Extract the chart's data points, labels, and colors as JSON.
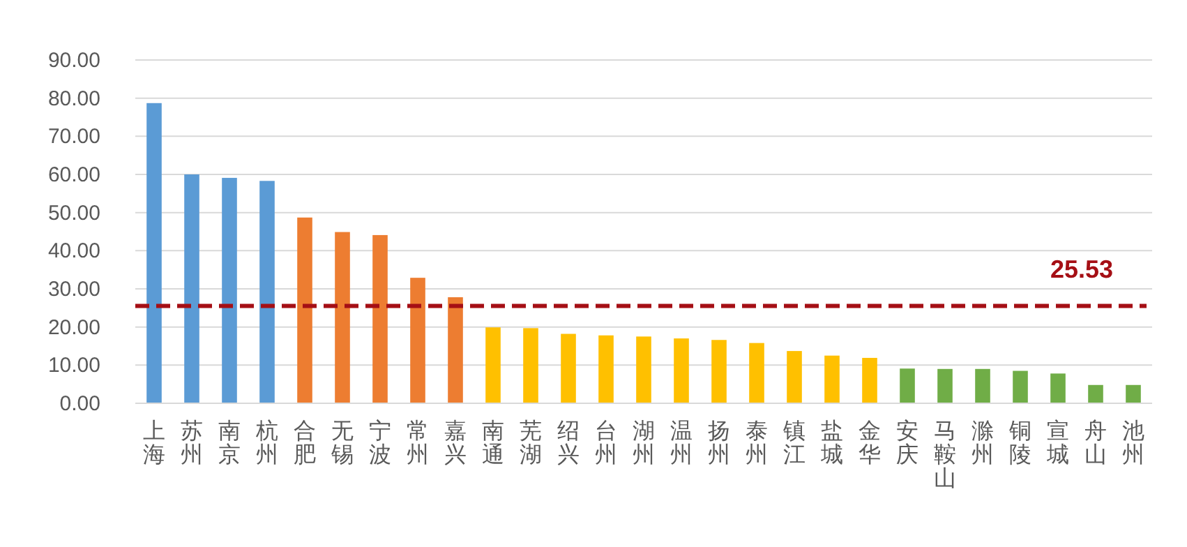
{
  "chart_data": {
    "type": "bar",
    "categories": [
      "上海",
      "苏州",
      "南京",
      "杭州",
      "合肥",
      "无锡",
      "宁波",
      "常州",
      "嘉兴",
      "南通",
      "芜湖",
      "绍兴",
      "台州",
      "湖州",
      "温州",
      "扬州",
      "泰州",
      "镇江",
      "盐城",
      "金华",
      "安庆",
      "马鞍山",
      "滁州",
      "铜陵",
      "宣城",
      "舟山",
      "池州"
    ],
    "values": [
      78.7,
      60.0,
      59.1,
      58.3,
      48.7,
      44.9,
      44.1,
      32.9,
      27.8,
      19.9,
      19.7,
      18.2,
      17.8,
      17.5,
      17.0,
      16.6,
      15.8,
      13.7,
      12.5,
      11.9,
      9.1,
      9.0,
      9.0,
      8.5,
      7.8,
      4.8,
      4.8
    ],
    "colors": [
      "#5b9bd5",
      "#5b9bd5",
      "#5b9bd5",
      "#5b9bd5",
      "#ed7d31",
      "#ed7d31",
      "#ed7d31",
      "#ed7d31",
      "#ed7d31",
      "#ffc000",
      "#ffc000",
      "#ffc000",
      "#ffc000",
      "#ffc000",
      "#ffc000",
      "#ffc000",
      "#ffc000",
      "#ffc000",
      "#ffc000",
      "#ffc000",
      "#70ad47",
      "#70ad47",
      "#70ad47",
      "#70ad47",
      "#70ad47",
      "#70ad47",
      "#70ad47"
    ],
    "ylim": [
      0,
      90
    ],
    "yticks": [
      {
        "value": 0,
        "label": "0.00"
      },
      {
        "value": 10,
        "label": "10.00"
      },
      {
        "value": 20,
        "label": "20.00"
      },
      {
        "value": 30,
        "label": "30.00"
      },
      {
        "value": 40,
        "label": "40.00"
      },
      {
        "value": 50,
        "label": "50.00"
      },
      {
        "value": 60,
        "label": "60.00"
      },
      {
        "value": 70,
        "label": "70.00"
      },
      {
        "value": 80,
        "label": "80.00"
      },
      {
        "value": 90,
        "label": "90.00"
      }
    ],
    "grid": "y",
    "ref_lines": [
      {
        "axis": "y",
        "value": 25.53,
        "label": "25.53",
        "color": "#a50f15",
        "line_style": "dashed"
      }
    ]
  }
}
